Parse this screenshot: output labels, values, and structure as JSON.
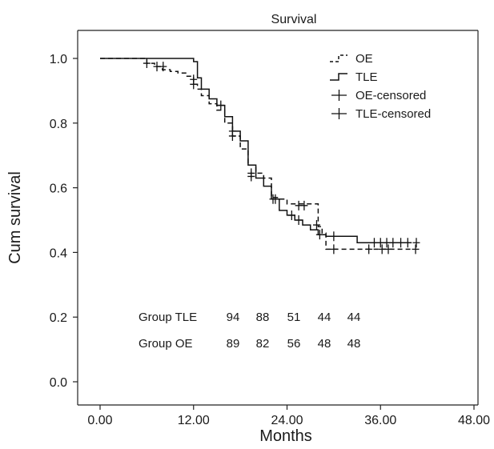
{
  "chart_data": {
    "type": "line",
    "title": "Survival",
    "xlabel": "Months",
    "ylabel": "Cum survival",
    "xlim": [
      0,
      48
    ],
    "ylim": [
      0,
      1
    ],
    "x_ticks": [
      "0.00",
      "12.00",
      "24.00",
      "36.00",
      "48.00"
    ],
    "y_ticks": [
      "0.0",
      "0.2",
      "0.4",
      "0.6",
      "0.8",
      "1.0"
    ],
    "grid": false,
    "legend_position": "top-right",
    "legend": [
      {
        "label": "OE",
        "kind": "line",
        "style": "dashed"
      },
      {
        "label": "TLE",
        "kind": "line",
        "style": "solid"
      },
      {
        "label": "OE-censored",
        "kind": "censor"
      },
      {
        "label": "TLE-censored",
        "kind": "censor"
      }
    ],
    "series": [
      {
        "name": "OE",
        "style": "dashed",
        "x": [
          0,
          6,
          7,
          8,
          9,
          10,
          11,
          12,
          12.5,
          13,
          14,
          15,
          16,
          17,
          18,
          19,
          20,
          21,
          22,
          23,
          24,
          27.5,
          28,
          28.5,
          29,
          40
        ],
        "y": [
          1.0,
          0.985,
          0.975,
          0.965,
          0.96,
          0.955,
          0.945,
          0.92,
          0.905,
          0.885,
          0.86,
          0.84,
          0.8,
          0.76,
          0.72,
          0.67,
          0.645,
          0.63,
          0.57,
          0.565,
          0.55,
          0.55,
          0.48,
          0.46,
          0.41,
          0.41
        ]
      },
      {
        "name": "TLE",
        "style": "solid",
        "x": [
          0,
          6,
          12,
          12.5,
          13,
          14,
          15,
          16,
          17,
          18,
          19,
          20,
          21,
          22,
          23,
          24,
          25,
          26,
          27,
          28,
          29,
          30,
          33,
          40
        ],
        "y": [
          1.0,
          1.0,
          0.99,
          0.94,
          0.905,
          0.875,
          0.855,
          0.82,
          0.775,
          0.745,
          0.67,
          0.63,
          0.605,
          0.565,
          0.53,
          0.515,
          0.5,
          0.485,
          0.47,
          0.455,
          0.45,
          0.45,
          0.43,
          0.43
        ]
      }
    ],
    "censored": [
      {
        "series": "OE",
        "x": [
          6,
          7.3,
          8.1,
          12,
          15.5,
          17,
          19.4,
          22.5,
          25.5,
          26.2,
          30,
          34.5,
          36.2,
          37,
          40.5
        ],
        "y": [
          0.985,
          0.975,
          0.975,
          0.92,
          0.855,
          0.76,
          0.645,
          0.565,
          0.545,
          0.545,
          0.41,
          0.41,
          0.41,
          0.41,
          0.41
        ]
      },
      {
        "series": "TLE",
        "x": [
          12,
          17,
          19.4,
          22.2,
          24.6,
          25.5,
          27.8,
          28.2,
          30,
          35.2,
          36,
          36.8,
          37.6,
          38.6,
          39.5,
          40.6
        ],
        "y": [
          0.935,
          0.775,
          0.635,
          0.565,
          0.515,
          0.5,
          0.485,
          0.455,
          0.45,
          0.43,
          0.43,
          0.43,
          0.43,
          0.43,
          0.43,
          0.43
        ]
      }
    ],
    "at_risk": [
      {
        "label": "Group TLE",
        "values": [
          "94",
          "88",
          "51",
          "44",
          "44"
        ]
      },
      {
        "label": "Group OE",
        "values": [
          "89",
          "82",
          "56",
          "48",
          "48"
        ]
      }
    ]
  }
}
